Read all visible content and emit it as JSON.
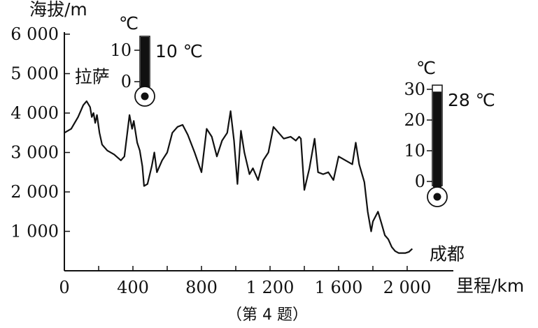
{
  "chart_data": {
    "type": "line",
    "xlabel": "里程/km",
    "ylabel": "海拔/m",
    "xlim": [
      0,
      2200
    ],
    "ylim": [
      0,
      6000
    ],
    "x_ticks": [
      {
        "v": 0,
        "label": "0"
      },
      {
        "v": 400,
        "label": "400"
      },
      {
        "v": 800,
        "label": "800"
      },
      {
        "v": 1200,
        "label": "1 200"
      },
      {
        "v": 1600,
        "label": "1 600"
      },
      {
        "v": 2000,
        "label": "2 000"
      }
    ],
    "y_ticks": [
      {
        "v": 1000,
        "label": "1 000"
      },
      {
        "v": 2000,
        "label": "2 000"
      },
      {
        "v": 3000,
        "label": "3 000"
      },
      {
        "v": 4000,
        "label": "4 000"
      },
      {
        "v": 5000,
        "label": "5 000"
      },
      {
        "v": 6000,
        "label": "6 000"
      }
    ],
    "series": [
      {
        "points": [
          [
            0,
            3500
          ],
          [
            40,
            3600
          ],
          [
            80,
            3900
          ],
          [
            110,
            4200
          ],
          [
            130,
            4300
          ],
          [
            150,
            4150
          ],
          [
            160,
            3900
          ],
          [
            170,
            4000
          ],
          [
            180,
            3750
          ],
          [
            190,
            3950
          ],
          [
            205,
            3500
          ],
          [
            220,
            3200
          ],
          [
            250,
            3050
          ],
          [
            290,
            2950
          ],
          [
            330,
            2800
          ],
          [
            350,
            2900
          ],
          [
            380,
            3950
          ],
          [
            395,
            3600
          ],
          [
            405,
            3800
          ],
          [
            425,
            3250
          ],
          [
            440,
            3050
          ],
          [
            455,
            2650
          ],
          [
            465,
            2150
          ],
          [
            485,
            2200
          ],
          [
            510,
            2650
          ],
          [
            525,
            3000
          ],
          [
            540,
            2500
          ],
          [
            570,
            2800
          ],
          [
            600,
            3000
          ],
          [
            630,
            3500
          ],
          [
            660,
            3650
          ],
          [
            690,
            3700
          ],
          [
            720,
            3450
          ],
          [
            760,
            3000
          ],
          [
            800,
            2500
          ],
          [
            830,
            3600
          ],
          [
            860,
            3400
          ],
          [
            890,
            2900
          ],
          [
            920,
            3300
          ],
          [
            950,
            3500
          ],
          [
            970,
            4050
          ],
          [
            990,
            3300
          ],
          [
            1010,
            2200
          ],
          [
            1030,
            3550
          ],
          [
            1050,
            3000
          ],
          [
            1080,
            2450
          ],
          [
            1100,
            2600
          ],
          [
            1130,
            2300
          ],
          [
            1160,
            2800
          ],
          [
            1190,
            3000
          ],
          [
            1220,
            3650
          ],
          [
            1250,
            3500
          ],
          [
            1280,
            3350
          ],
          [
            1320,
            3400
          ],
          [
            1350,
            3300
          ],
          [
            1370,
            3400
          ],
          [
            1380,
            3350
          ],
          [
            1400,
            2050
          ],
          [
            1430,
            2600
          ],
          [
            1460,
            3350
          ],
          [
            1480,
            2500
          ],
          [
            1510,
            2450
          ],
          [
            1540,
            2500
          ],
          [
            1570,
            2300
          ],
          [
            1600,
            2900
          ],
          [
            1640,
            2800
          ],
          [
            1680,
            2700
          ],
          [
            1700,
            3250
          ],
          [
            1720,
            2700
          ],
          [
            1750,
            2250
          ],
          [
            1770,
            1500
          ],
          [
            1790,
            1000
          ],
          [
            1800,
            1250
          ],
          [
            1830,
            1500
          ],
          [
            1850,
            1200
          ],
          [
            1870,
            900
          ],
          [
            1890,
            800
          ],
          [
            1910,
            600
          ],
          [
            1930,
            500
          ],
          [
            1950,
            450
          ],
          [
            1970,
            450
          ],
          [
            1990,
            450
          ],
          [
            2010,
            480
          ],
          [
            2030,
            560
          ]
        ]
      }
    ],
    "annotations": [
      {
        "text": "拉萨",
        "x": 60,
        "y": 4950
      },
      {
        "text": "成都",
        "x": 2130,
        "y": 450
      }
    ],
    "thermometers": [
      {
        "id": "lhasa",
        "unit": "℃",
        "ticks": [
          "10",
          "0"
        ],
        "reading": "10 ℃",
        "value": 10,
        "min": -5,
        "max": 10
      },
      {
        "id": "chengdu",
        "unit": "℃",
        "ticks": [
          "30",
          "20",
          "10",
          "0"
        ],
        "reading": "28 ℃",
        "value": 28,
        "min": -5,
        "max": 30
      }
    ]
  },
  "caption": "（第 4 题）"
}
